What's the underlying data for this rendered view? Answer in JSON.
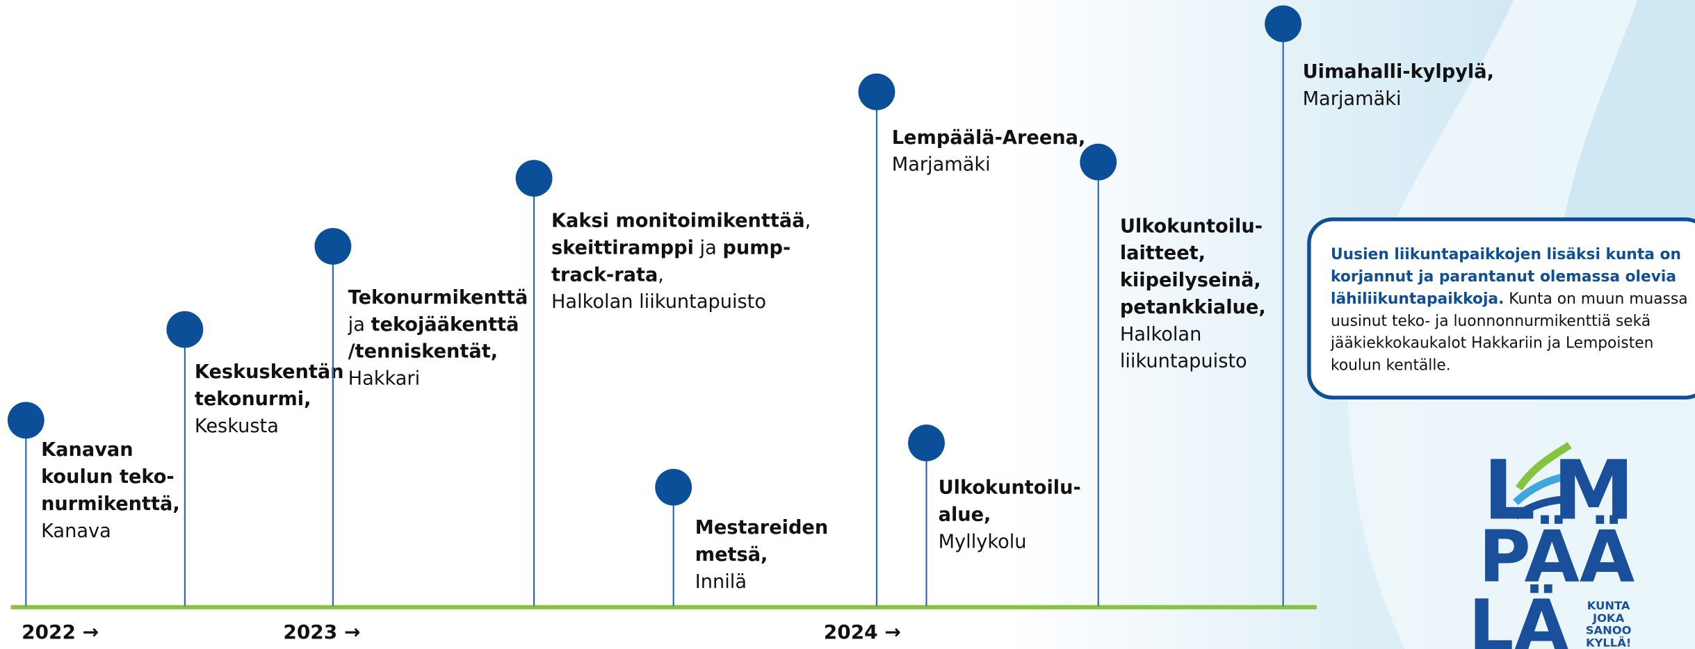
{
  "events": [
    {
      "lines": [
        [
          {
            "text": "Kanavan",
            "bold": true
          }
        ],
        [
          {
            "text": "koulun teko-",
            "bold": true
          }
        ],
        [
          {
            "text": "nurmikenttä,",
            "bold": true
          }
        ],
        [
          {
            "text": "Kanava",
            "bold": false
          }
        ]
      ]
    },
    {
      "lines": [
        [
          {
            "text": "Keskuskentän",
            "bold": true
          }
        ],
        [
          {
            "text": "tekonurmi,",
            "bold": true
          }
        ],
        [
          {
            "text": "Keskusta",
            "bold": false
          }
        ]
      ]
    },
    {
      "lines": [
        [
          {
            "text": "Tekonurmikenttä",
            "bold": true
          }
        ],
        [
          {
            "text": "ja ",
            "bold": false
          },
          {
            "text": "tekojääkenttä",
            "bold": true
          }
        ],
        [
          {
            "text": "/tenniskentät,",
            "bold": true
          }
        ],
        [
          {
            "text": "Hakkari",
            "bold": false
          }
        ]
      ]
    },
    {
      "lines": [
        [
          {
            "text": "Kaksi monitoimikenttää",
            "bold": true
          },
          {
            "text": ",",
            "bold": false
          }
        ],
        [
          {
            "text": "skeittiramppi",
            "bold": true
          },
          {
            "text": " ja ",
            "bold": false
          },
          {
            "text": "pump-",
            "bold": true
          }
        ],
        [
          {
            "text": "track-rata",
            "bold": true
          },
          {
            "text": ",",
            "bold": false
          }
        ],
        [
          {
            "text": "Halkolan liikuntapuisto",
            "bold": false
          }
        ]
      ]
    },
    {
      "lines": [
        [
          {
            "text": "Mestareiden",
            "bold": true
          }
        ],
        [
          {
            "text": "metsä,",
            "bold": true
          }
        ],
        [
          {
            "text": "Innilä",
            "bold": false
          }
        ]
      ]
    },
    {
      "lines": [
        [
          {
            "text": "Lempäälä-Areena,",
            "bold": true
          }
        ],
        [
          {
            "text": "Marjamäki",
            "bold": false
          }
        ]
      ]
    },
    {
      "lines": [
        [
          {
            "text": "Ulkokuntoilu-",
            "bold": true
          }
        ],
        [
          {
            "text": "alue,",
            "bold": true
          }
        ],
        [
          {
            "text": "Myllykolu",
            "bold": false
          }
        ]
      ]
    },
    {
      "lines": [
        [
          {
            "text": "Ulkokuntoilu-",
            "bold": true
          }
        ],
        [
          {
            "text": "laitteet,",
            "bold": true
          }
        ],
        [
          {
            "text": "kiipeilyseinä,",
            "bold": true
          }
        ],
        [
          {
            "text": "petankkialue,",
            "bold": true
          }
        ],
        [
          {
            "text": "Halkolan",
            "bold": false
          }
        ],
        [
          {
            "text": "liikuntapuisto",
            "bold": false
          }
        ]
      ]
    },
    {
      "lines": [
        [
          {
            "text": "Uimahalli-kylpylä,",
            "bold": true
          }
        ],
        [
          {
            "text": "Marjamäki",
            "bold": false
          }
        ]
      ]
    }
  ],
  "years": [
    "2022 →",
    "2023 →",
    "2024 →"
  ],
  "info": {
    "lines": [
      [
        {
          "text": "Uusien liikuntapaikkojen lisäksi kunta on",
          "bold": true
        }
      ],
      [
        {
          "text": "korjannut ja parantanut olemassa olevia",
          "bold": true
        }
      ],
      [
        {
          "text": "lähiliikuntapaikkoja.",
          "bold": true
        },
        {
          "text": " Kunta on muun muassa",
          "bold": false
        }
      ],
      [
        {
          "text": "uusinut teko- ja luonnonnurmikenttiä  sekä",
          "bold": false
        }
      ],
      [
        {
          "text": "jääkiekkokaukalot Hakkariin ja Lempoisten",
          "bold": false
        }
      ],
      [
        {
          "text": "koulun kentälle.",
          "bold": false
        }
      ]
    ]
  },
  "logo": {
    "letters": [
      "L",
      "M",
      "PÄÄ",
      "LÄ"
    ],
    "slogan": [
      "KUNTA",
      "JOKA",
      "SANOO",
      "KYLLÄ!"
    ]
  }
}
